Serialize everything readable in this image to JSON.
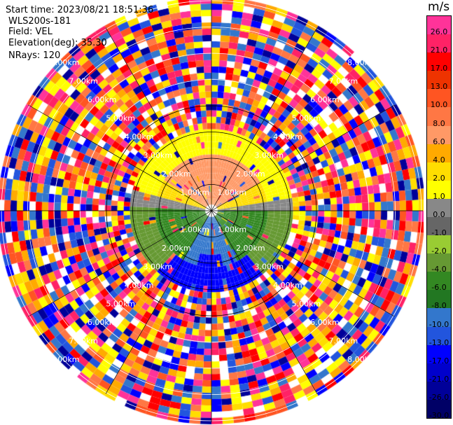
{
  "header": {
    "start_time": "Start time: 2023/08/21 18:51:36",
    "radar": "WLS200s-181",
    "field": "Field: VEL",
    "elevation": "Elevation(deg): 35.30",
    "nrays": "NRays: 120"
  },
  "chart_data": {
    "type": "heatmap",
    "projection": "polar-ppi",
    "nrays": 120,
    "range_rings_km": [
      "1.00km",
      "2.00km",
      "3.00km",
      "4.00km",
      "5.00km",
      "6.00km",
      "7.00km",
      "8.00km"
    ],
    "colorbar": {
      "unit": "m/s",
      "ticks": [
        "26.0",
        "21.0",
        "17.0",
        "13.0",
        "10.0",
        "8.0",
        "6.0",
        "4.0",
        "2.0",
        "1.0",
        "0.0",
        "-1.0",
        "-2.0",
        "-4.0",
        "-6.0",
        "-8.0",
        "-10.0",
        "-13.0",
        "-17.0",
        "-21.0",
        "-26.0",
        "-30.0"
      ],
      "colors": [
        "#ff3399",
        "#ff2266",
        "#ff0000",
        "#ee3300",
        "#ff5522",
        "#ff7744",
        "#ff9966",
        "#ffaa00",
        "#ffdd00",
        "#ffff00",
        "#888888",
        "#666666",
        "#99cc33",
        "#669933",
        "#338822",
        "#227722",
        "#3377cc",
        "#2255dd",
        "#0000ff",
        "#0000cc",
        "#000099",
        "#000066"
      ]
    }
  }
}
